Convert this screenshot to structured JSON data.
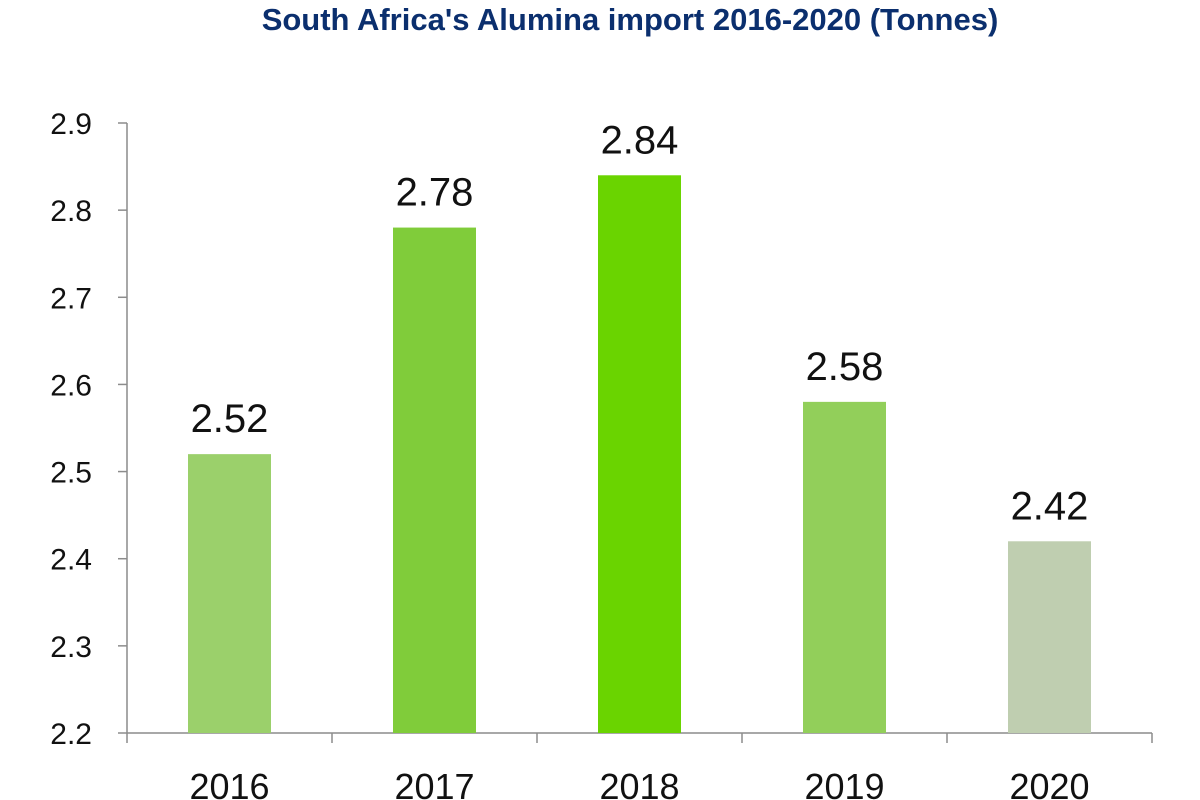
{
  "chart_data": {
    "type": "bar",
    "title": "South Africa's Alumina import 2016-2020 (Tonnes)",
    "xlabel": "",
    "ylabel": "",
    "categories": [
      "2016",
      "2017",
      "2018",
      "2019",
      "2020"
    ],
    "values": [
      2.52,
      2.78,
      2.84,
      2.58,
      2.42
    ],
    "data_labels": [
      "2.52",
      "2.78",
      "2.84",
      "2.58",
      "2.42"
    ],
    "bar_colors": [
      "#9bd06b",
      "#80cc3a",
      "#6ad400",
      "#92cf5a",
      "#bfceb0"
    ],
    "ylim": [
      2.2,
      2.9
    ],
    "yticks": [
      2.2,
      2.3,
      2.4,
      2.5,
      2.6,
      2.7,
      2.8,
      2.9
    ],
    "ytick_labels": [
      "2.2",
      "2.3",
      "2.4",
      "2.5",
      "2.6",
      "2.7",
      "2.8",
      "2.9"
    ],
    "grid": false,
    "legend": "none",
    "title_color": "#0b2f6e"
  }
}
